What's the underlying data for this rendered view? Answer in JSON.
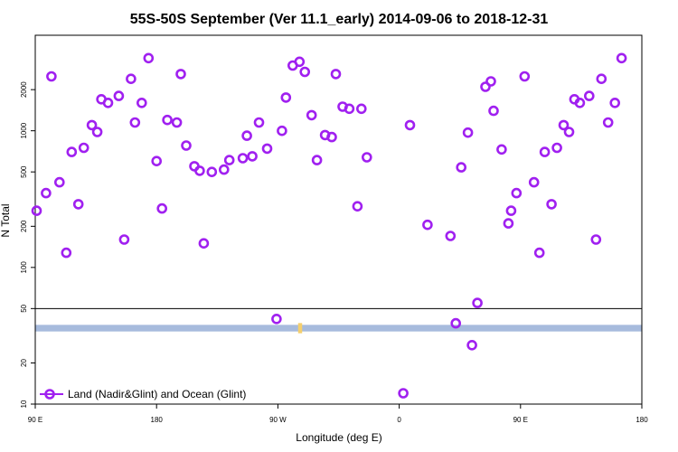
{
  "chart_data": {
    "type": "scatter",
    "title": "55S-50S September (Ver 11.1_early)   2014-09-06 to 2018-12-31",
    "xlabel": "Longitude (deg E)",
    "ylabel": "N Total",
    "x_scale": "linear",
    "y_scale": "log",
    "xlim": [
      90,
      540
    ],
    "ylim": [
      10,
      5000
    ],
    "x_ticks": [
      {
        "value": 90,
        "label": "90 E"
      },
      {
        "value": 180,
        "label": "180"
      },
      {
        "value": 270,
        "label": "90 W"
      },
      {
        "value": 360,
        "label": "0"
      },
      {
        "value": 450,
        "label": "90 E"
      },
      {
        "value": 540,
        "label": "180"
      }
    ],
    "y_ticks": [
      {
        "value": 10,
        "label": "10"
      },
      {
        "value": 20,
        "label": "20"
      },
      {
        "value": 50,
        "label": "50"
      },
      {
        "value": 100,
        "label": "100"
      },
      {
        "value": 200,
        "label": "200"
      },
      {
        "value": 500,
        "label": "500"
      },
      {
        "value": 1000,
        "label": "1000"
      },
      {
        "value": 2000,
        "label": "2000"
      }
    ],
    "threshold_line": 50,
    "grid": false,
    "colors": {
      "series": "#a020f0",
      "band": "#a7bbdd",
      "land": "#f4cf6e"
    },
    "land_band": {
      "y_low": 34,
      "y_high": 38,
      "x_min": 90,
      "x_max": 540
    },
    "land_patch": {
      "x_min": 285,
      "x_max": 288
    },
    "series": [
      {
        "name": "Land (Nadir&Glint) and Ocean (Glint)",
        "marker": "open-circle",
        "points": [
          [
            91,
            260
          ],
          [
            98,
            350
          ],
          [
            102,
            2500
          ],
          [
            108,
            420
          ],
          [
            113,
            128
          ],
          [
            117,
            700
          ],
          [
            122,
            290
          ],
          [
            126,
            750
          ],
          [
            132,
            1100
          ],
          [
            136,
            980
          ],
          [
            139,
            1700
          ],
          [
            144,
            1600
          ],
          [
            152,
            1800
          ],
          [
            156,
            160
          ],
          [
            161,
            2400
          ],
          [
            164,
            1150
          ],
          [
            169,
            1600
          ],
          [
            174,
            3400
          ],
          [
            180,
            600
          ],
          [
            184,
            270
          ],
          [
            188,
            1200
          ],
          [
            195,
            1150
          ],
          [
            198,
            2600
          ],
          [
            202,
            780
          ],
          [
            208,
            550
          ],
          [
            212,
            510
          ],
          [
            215,
            150
          ],
          [
            221,
            500
          ],
          [
            230,
            520
          ],
          [
            234,
            610
          ],
          [
            244,
            630
          ],
          [
            247,
            920
          ],
          [
            251,
            650
          ],
          [
            256,
            1150
          ],
          [
            262,
            740
          ],
          [
            269,
            42
          ],
          [
            273,
            1000
          ],
          [
            276,
            1750
          ],
          [
            281,
            3000
          ],
          [
            286,
            3200
          ],
          [
            290,
            2700
          ],
          [
            295,
            1300
          ],
          [
            299,
            610
          ],
          [
            305,
            930
          ],
          [
            310,
            900
          ],
          [
            313,
            2600
          ],
          [
            318,
            1500
          ],
          [
            323,
            1450
          ],
          [
            329,
            280
          ],
          [
            332,
            1450
          ],
          [
            336,
            640
          ],
          [
            363,
            12
          ],
          [
            368,
            1100
          ],
          [
            381,
            205
          ],
          [
            398,
            170
          ],
          [
            402,
            39
          ],
          [
            406,
            540
          ],
          [
            411,
            970
          ],
          [
            414,
            27
          ],
          [
            418,
            55
          ],
          [
            424,
            2100
          ],
          [
            428,
            2300
          ],
          [
            430,
            1400
          ],
          [
            436,
            730
          ],
          [
            441,
            210
          ],
          [
            443,
            260
          ],
          [
            447,
            350
          ],
          [
            453,
            2500
          ],
          [
            460,
            420
          ],
          [
            464,
            128
          ],
          [
            468,
            700
          ],
          [
            473,
            290
          ],
          [
            477,
            750
          ],
          [
            482,
            1100
          ],
          [
            486,
            980
          ],
          [
            490,
            1700
          ],
          [
            494,
            1600
          ],
          [
            501,
            1800
          ],
          [
            506,
            160
          ],
          [
            510,
            2400
          ],
          [
            515,
            1150
          ],
          [
            520,
            1600
          ],
          [
            525,
            3400
          ]
        ]
      }
    ]
  }
}
